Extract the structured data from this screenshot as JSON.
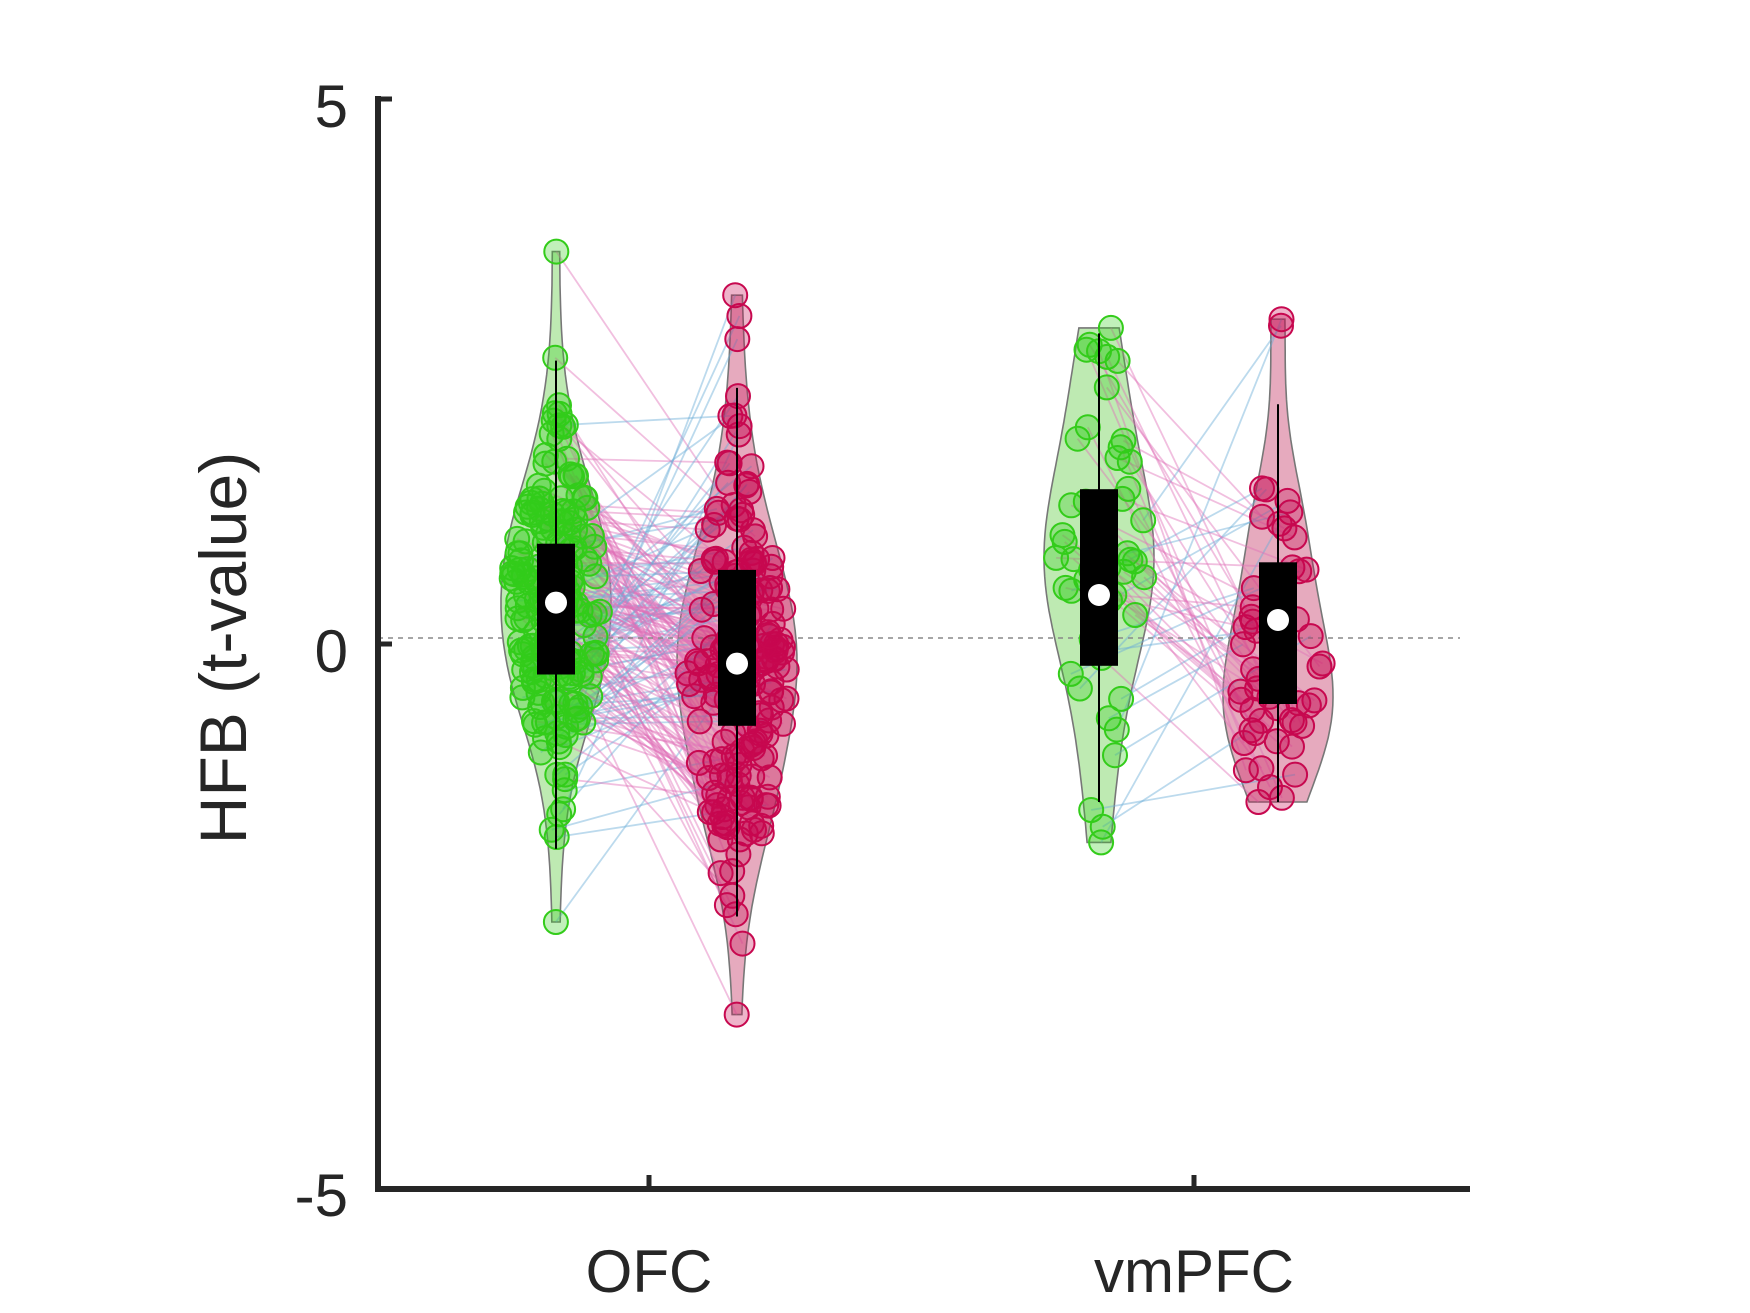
{
  "chart_data": {
    "type": "violin",
    "title": "",
    "xlabel": "",
    "ylabel": "HFB (t-value)",
    "ylim": [
      -5,
      5
    ],
    "yticks": [
      "5",
      "0",
      "-5"
    ],
    "categories": [
      "OFC",
      "vmPFC"
    ],
    "reference_line": 0,
    "grid": false,
    "legend": "none",
    "colors": {
      "condition_a": "#33cc1a",
      "condition_b": "#c7084f",
      "condition_a_fill": "#a8e398",
      "condition_b_fill": "#dd8ea8",
      "pair_line_decrease": "#e070b8",
      "pair_line_increase": "#6aaed6",
      "box": "#000000",
      "median": "#ffffff",
      "axis": "#262626"
    },
    "groups": [
      {
        "category": "OFC",
        "n_points": 200,
        "series": [
          {
            "condition": "a",
            "min": -2.55,
            "q1": -0.28,
            "median": 0.38,
            "q3": 0.92,
            "max": 3.6,
            "whisker_low": -1.88,
            "whisker_high": 2.6
          },
          {
            "condition": "b",
            "min": -3.4,
            "q1": -0.75,
            "median": -0.18,
            "q3": 0.68,
            "max": 3.2,
            "whisker_low": -2.5,
            "whisker_high": 2.35
          }
        ]
      },
      {
        "category": "vmPFC",
        "n_points": 50,
        "series": [
          {
            "condition": "a",
            "min": -1.82,
            "q1": -0.2,
            "median": 0.45,
            "q3": 1.42,
            "max": 2.9,
            "whisker_low": -1.45,
            "whisker_high": 2.85
          },
          {
            "condition": "b",
            "min": -1.45,
            "q1": -0.55,
            "median": 0.22,
            "q3": 0.75,
            "max": 2.98,
            "whisker_low": -1.45,
            "whisker_high": 2.2
          }
        ]
      }
    ]
  }
}
